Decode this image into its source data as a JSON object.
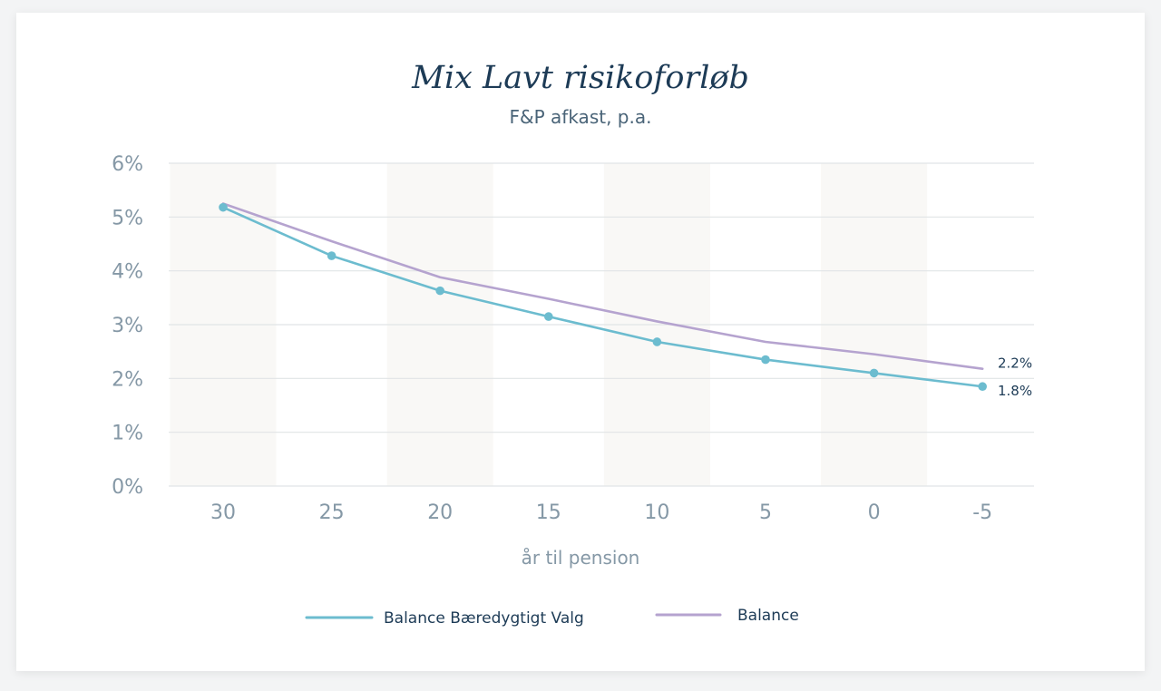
{
  "colors": {
    "card_bg": "#ffffff",
    "grid": "#e1e4e6",
    "band": "#f9f8f6",
    "series_teal": "#6cbccf",
    "series_purple": "#b5a3cf",
    "text_dark": "#1d3b56",
    "text_muted": "#8598a6"
  },
  "chart_data": {
    "type": "line",
    "title": "Mix Lavt risikoforløb",
    "subtitle": "F&P afkast, p.a.",
    "xlabel": "år til pension",
    "ylabel": "",
    "x": [
      30,
      25,
      20,
      15,
      10,
      5,
      0,
      -5
    ],
    "x_tick_labels": [
      "30",
      "25",
      "20",
      "15",
      "10",
      "5",
      "0",
      "-5"
    ],
    "y_tick_labels": [
      "6%",
      "5%",
      "4%",
      "3%",
      "2%",
      "1%",
      "0%"
    ],
    "ylim": [
      0,
      6
    ],
    "grid": true,
    "legend_position": "bottom-center",
    "series": [
      {
        "name": "Balance Bæredygtigt Valg",
        "values": [
          5.18,
          4.28,
          3.63,
          3.15,
          2.68,
          2.35,
          2.1,
          1.85
        ],
        "markers": true,
        "color": "#6cbccf",
        "end_label": "1.8%"
      },
      {
        "name": "Balance",
        "values": [
          5.25,
          4.55,
          3.88,
          3.48,
          3.06,
          2.68,
          2.45,
          2.18
        ],
        "markers": false,
        "color": "#b5a3cf",
        "end_label": "2.2%"
      }
    ]
  }
}
